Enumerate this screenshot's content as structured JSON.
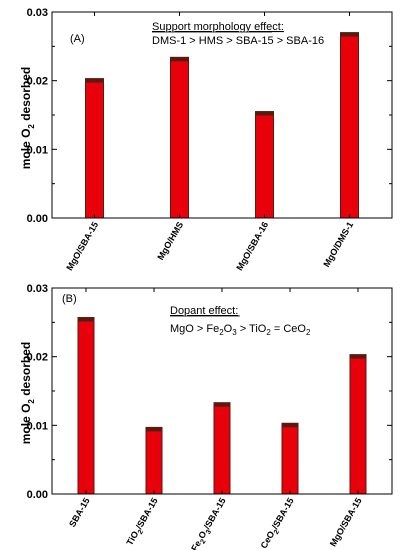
{
  "colors": {
    "bar": "#e8000b",
    "bar_edge": "#5a1a10",
    "axis": "#000000"
  },
  "chart_data": [
    {
      "type": "bar",
      "panel_label": "(A)",
      "annotation_heading": "Support morphology effect:",
      "annotation_text": "DMS-1 > HMS > SBA-15 > SBA-16",
      "categories": [
        "MgO/SBA-15",
        "MgO/HMS",
        "MgO/SBA-16",
        "MgO/DMS-1"
      ],
      "values": [
        0.0203,
        0.0234,
        0.0155,
        0.027
      ],
      "ylabel_main": "mole O",
      "ylabel_sub": "2",
      "ylabel_rest": " desorbed",
      "ylim": [
        0,
        0.03
      ],
      "yticks": [
        "0.00",
        "0.01",
        "0.02",
        "0.03"
      ]
    },
    {
      "type": "bar",
      "panel_label": "(B)",
      "annotation_heading": "Dopant effect:",
      "annotation_parts": [
        "MgO > Fe",
        "2",
        "O",
        "3",
        " > TiO",
        "2",
        " = CeO",
        "2"
      ],
      "categories_main": [
        "SBA-15",
        "TiO",
        "Fe",
        "CeO",
        "MgO/SBA-15"
      ],
      "categories_parts": [
        [
          "SBA-15",
          "",
          "",
          ""
        ],
        [
          "TiO",
          "2",
          "/SBA-15",
          ""
        ],
        [
          "Fe",
          "2",
          "O",
          "3"
        ],
        [
          "CeO",
          "2",
          "/SBA-15",
          ""
        ],
        [
          "MgO/SBA-15",
          "",
          "",
          ""
        ]
      ],
      "fe_suffix": "/SBA-15",
      "values": [
        0.0257,
        0.0097,
        0.0133,
        0.0103,
        0.0203
      ],
      "ylabel_main": "mole O",
      "ylabel_sub": "2",
      "ylabel_rest": " desorbed",
      "ylim": [
        0,
        0.03
      ],
      "yticks": [
        "0.00",
        "0.01",
        "0.02",
        "0.03"
      ]
    }
  ]
}
